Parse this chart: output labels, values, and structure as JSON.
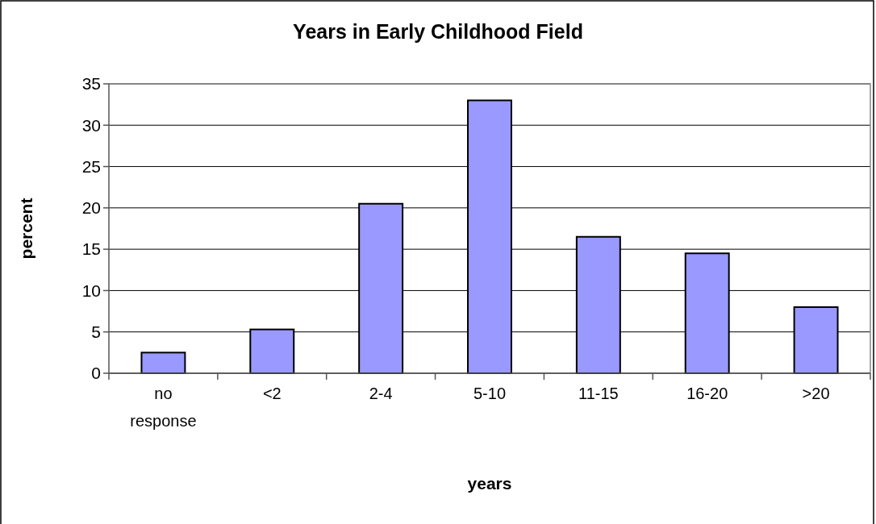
{
  "chart_data": {
    "type": "bar",
    "title": "Years in Early Childhood Field",
    "xlabel": "years",
    "ylabel": "percent",
    "categories": [
      "no response",
      "<2",
      "2-4",
      "5-10",
      "11-15",
      "16-20",
      ">20"
    ],
    "values": [
      2.5,
      5.3,
      20.5,
      33.0,
      16.5,
      14.5,
      8.0
    ],
    "color": "#9999ff",
    "ylim": [
      0,
      35
    ],
    "yticks": [
      0,
      5,
      10,
      15,
      20,
      25,
      30,
      35
    ],
    "grid": "y"
  }
}
